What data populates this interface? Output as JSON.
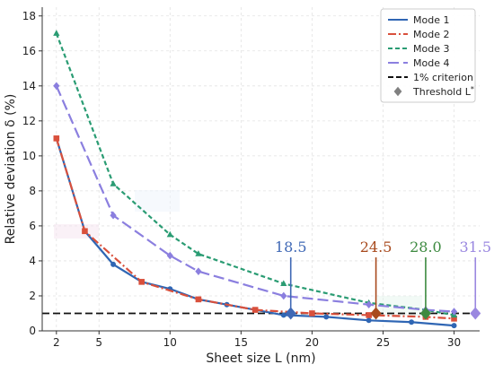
{
  "chart_data": {
    "type": "line",
    "xlabel": "Sheet size L (nm)",
    "ylabel": "Relative deviation δ (%)",
    "xlim": [
      1,
      31.8
    ],
    "ylim": [
      0,
      18.5
    ],
    "xticks": [
      2,
      5,
      10,
      15,
      20,
      25,
      30
    ],
    "yticks": [
      0,
      2,
      4,
      6,
      8,
      10,
      12,
      14,
      16,
      18
    ],
    "grid": true,
    "legend_position": "top-right",
    "series": [
      {
        "name": "Mode 1",
        "color": "#2f66b4",
        "linestyle": "solid",
        "marker": "circle",
        "x": [
          2,
          4,
          6,
          8,
          10,
          12,
          14,
          16,
          18,
          21,
          24,
          27,
          30
        ],
        "y": [
          11.0,
          5.7,
          3.8,
          2.8,
          2.4,
          1.8,
          1.5,
          1.2,
          0.9,
          0.8,
          0.6,
          0.5,
          0.3
        ]
      },
      {
        "name": "Mode 2",
        "color": "#d9503c",
        "linestyle": "dashdot",
        "marker": "square",
        "x": [
          2,
          4,
          8,
          12,
          16,
          20,
          24,
          28,
          30
        ],
        "y": [
          11.0,
          5.7,
          2.8,
          1.8,
          1.2,
          1.0,
          0.9,
          0.8,
          0.7
        ]
      },
      {
        "name": "Mode 3",
        "color": "#2a9c73",
        "linestyle": "dashed",
        "marker": "triangle",
        "x": [
          2,
          6,
          10,
          12,
          18,
          24,
          28,
          30
        ],
        "y": [
          17.0,
          8.4,
          5.5,
          4.4,
          2.7,
          1.6,
          1.2,
          0.9
        ]
      },
      {
        "name": "Mode 4",
        "color": "#8b7fdf",
        "linestyle": "longdash",
        "marker": "diamond",
        "x": [
          2,
          6,
          10,
          12,
          18,
          24,
          28,
          30
        ],
        "y": [
          14.0,
          6.6,
          4.3,
          3.4,
          2.0,
          1.5,
          1.2,
          1.1
        ]
      }
    ],
    "criterion": {
      "name": "1% criterion",
      "y": 1.0,
      "color": "#111111"
    },
    "threshold": {
      "name": "Threshold L*",
      "points": [
        {
          "x": 18.5,
          "y": 1.0,
          "label": "18.5",
          "color": "#3f68b5"
        },
        {
          "x": 24.5,
          "y": 1.0,
          "label": "24.5",
          "color": "#a84a1e"
        },
        {
          "x": 28.0,
          "y": 1.0,
          "label": "28.0",
          "color": "#3d8a40"
        },
        {
          "x": 31.5,
          "y": 1.0,
          "label": "31.5",
          "color": "#9a87e0"
        }
      ]
    }
  },
  "legend_marker_color": "#808080"
}
